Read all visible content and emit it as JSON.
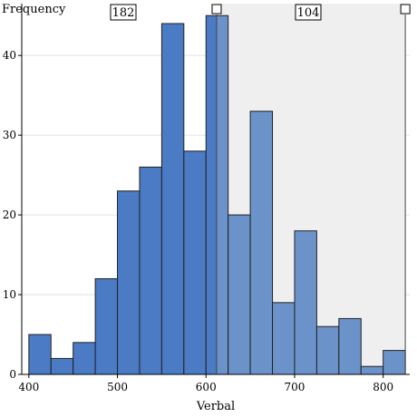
{
  "chart_data": {
    "type": "bar",
    "title": "",
    "xlabel": "Verbal",
    "ylabel": "Frequency",
    "bin_width": 25,
    "bins": [
      {
        "start": 400,
        "end": 425,
        "count": 5
      },
      {
        "start": 425,
        "end": 450,
        "count": 2
      },
      {
        "start": 450,
        "end": 475,
        "count": 4
      },
      {
        "start": 475,
        "end": 500,
        "count": 12
      },
      {
        "start": 500,
        "end": 525,
        "count": 23
      },
      {
        "start": 525,
        "end": 550,
        "count": 26
      },
      {
        "start": 550,
        "end": 575,
        "count": 44
      },
      {
        "start": 575,
        "end": 600,
        "count": 28
      },
      {
        "start": 600,
        "end": 625,
        "count": 45
      },
      {
        "start": 625,
        "end": 650,
        "count": 20
      },
      {
        "start": 650,
        "end": 675,
        "count": 33
      },
      {
        "start": 675,
        "end": 700,
        "count": 9
      },
      {
        "start": 700,
        "end": 725,
        "count": 18
      },
      {
        "start": 725,
        "end": 750,
        "count": 6
      },
      {
        "start": 750,
        "end": 775,
        "count": 7
      },
      {
        "start": 775,
        "end": 800,
        "count": 1
      },
      {
        "start": 800,
        "end": 825,
        "count": 3
      }
    ],
    "xlim": [
      392,
      830
    ],
    "ylim": [
      0,
      46.5
    ],
    "x_ticks": [
      "400",
      "500",
      "600",
      "700",
      "800"
    ],
    "y_ticks": [
      "0",
      "10",
      "20",
      "30",
      "40"
    ],
    "grid": true,
    "selection": {
      "start": 612,
      "end": 825,
      "count_left": "182",
      "count_right": "104"
    },
    "colors": {
      "bar_unselected": "#4a7bc4",
      "bar_selected": "#6b93c9",
      "bar_stroke": "#222222",
      "selection_bg": "#efefef",
      "grid": "#e2e2e2"
    }
  }
}
